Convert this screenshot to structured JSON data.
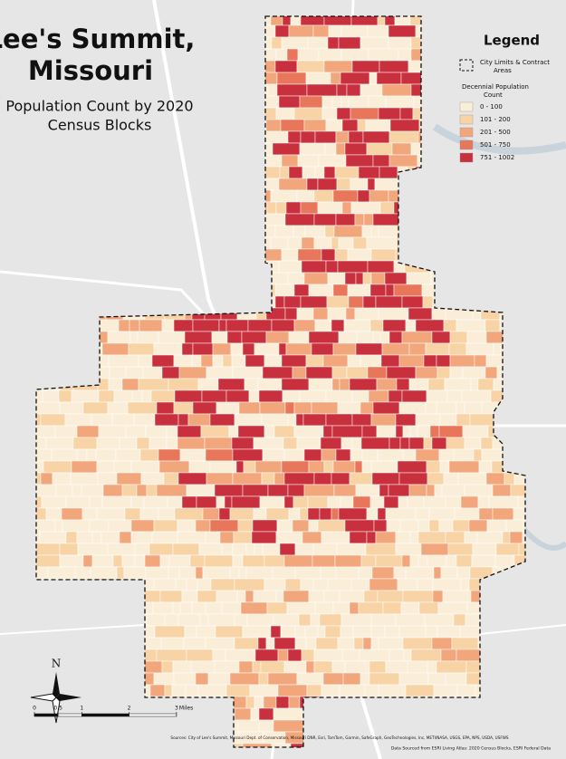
{
  "title": [
    "Lee's Summit,",
    "Missouri"
  ],
  "subtitle": [
    "Population Count by 2020",
    "Census Blocks"
  ],
  "legend": {
    "title": "Legend",
    "boundary_label": [
      "City Limits & Contract",
      "Areas"
    ],
    "classes_title": [
      "Decennial Population",
      "Count"
    ],
    "classes": [
      {
        "label": "0 - 100",
        "color": "#fbeed8"
      },
      {
        "label": "101 - 200",
        "color": "#f8d3a6"
      },
      {
        "label": "201 - 500",
        "color": "#f2a67c"
      },
      {
        "label": "501 - 750",
        "color": "#e8765b"
      },
      {
        "label": "751 - 1002",
        "color": "#c8303e"
      }
    ]
  },
  "north_label": "N",
  "scale_bar": {
    "ticks": [
      0,
      0.5,
      1,
      2,
      3
    ],
    "unit": "Miles"
  },
  "credits": "Sources: City of Lee's Summit, Missouri Dept. of Conservation, Missouri DNR, Esri, TomTom, Garmin, SafeGraph, GeoTechnologies, Inc, METI/NASA, USGS, EPA, NPS, USDA, USFWS",
  "data_source": "Data Sourced from ESRI Living Atlas: 2020 Census Blocks, ESRI Federal Data"
}
